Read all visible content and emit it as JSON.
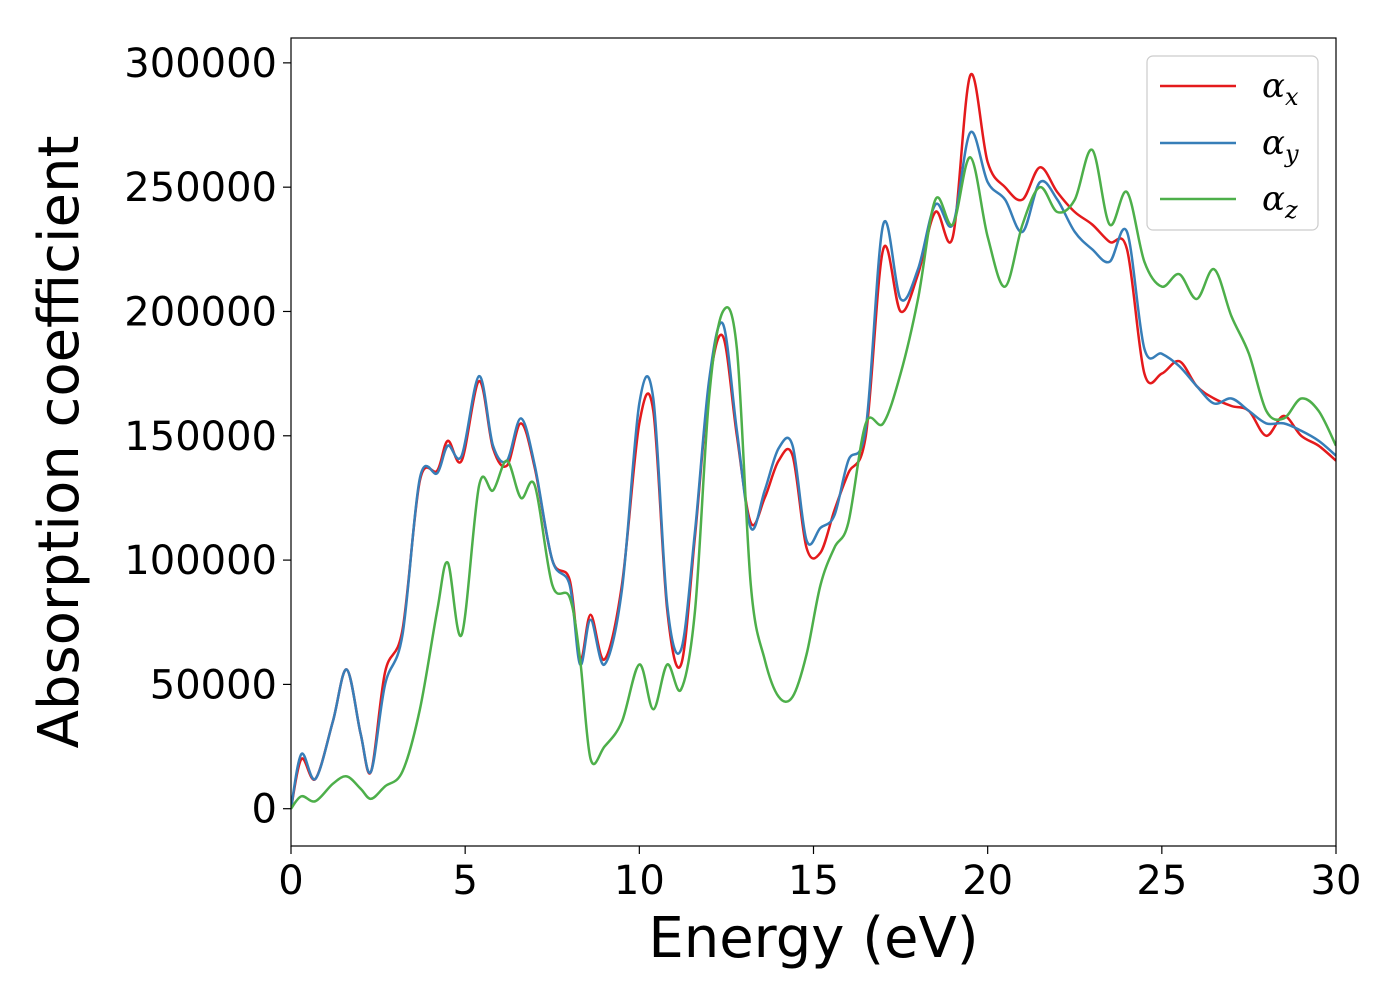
{
  "chart_data": {
    "type": "line",
    "xlabel": "Energy (eV)",
    "ylabel": "Absorption coefficient",
    "xlim": [
      0,
      30
    ],
    "ylim": [
      -15000,
      310000
    ],
    "xticks": [
      0,
      5,
      10,
      15,
      20,
      25,
      30
    ],
    "yticks": [
      0,
      50000,
      100000,
      150000,
      200000,
      250000,
      300000
    ],
    "grid": false,
    "legend_position": "top-right",
    "x": [
      0,
      0.3,
      0.7,
      1.2,
      1.6,
      2.0,
      2.3,
      2.7,
      3.2,
      3.7,
      4.2,
      4.5,
      4.9,
      5.4,
      5.8,
      6.2,
      6.6,
      7.0,
      7.5,
      8.0,
      8.3,
      8.6,
      9.0,
      9.5,
      10.0,
      10.4,
      10.8,
      11.2,
      11.6,
      12.0,
      12.4,
      12.8,
      13.2,
      13.6,
      14.0,
      14.4,
      14.8,
      15.2,
      15.6,
      16.0,
      16.5,
      17.0,
      17.5,
      18.0,
      18.5,
      19.0,
      19.5,
      20.0,
      20.5,
      21.0,
      21.5,
      22.0,
      22.5,
      23.0,
      23.5,
      24.0,
      24.5,
      25.0,
      25.5,
      26.0,
      26.5,
      27.0,
      27.5,
      28.0,
      28.5,
      29.0,
      29.5,
      30.0
    ],
    "series": [
      {
        "name": "x",
        "color": "#e41a1c",
        "values": [
          0,
          20000,
          12000,
          35000,
          56000,
          30000,
          15000,
          55000,
          72000,
          132000,
          136000,
          148000,
          140000,
          172000,
          145000,
          138000,
          155000,
          137000,
          100000,
          92000,
          60000,
          78000,
          60000,
          90000,
          155000,
          160000,
          80000,
          58000,
          110000,
          170000,
          190000,
          150000,
          115000,
          125000,
          140000,
          142000,
          105000,
          103000,
          120000,
          135000,
          150000,
          225000,
          200000,
          215000,
          240000,
          230000,
          295000,
          260000,
          250000,
          245000,
          258000,
          248000,
          240000,
          235000,
          228000,
          225000,
          175000,
          175000,
          180000,
          170000,
          165000,
          162000,
          160000,
          150000,
          158000,
          150000,
          146000,
          140000
        ]
      },
      {
        "name": "y",
        "color": "#377eb8",
        "values": [
          0,
          22000,
          12000,
          35000,
          56000,
          30000,
          15000,
          50000,
          70000,
          133000,
          135000,
          146000,
          142000,
          174000,
          146000,
          140000,
          157000,
          138000,
          100000,
          90000,
          58000,
          76000,
          58000,
          88000,
          163000,
          165000,
          82000,
          64000,
          112000,
          172000,
          195000,
          152000,
          113000,
          128000,
          145000,
          146000,
          108000,
          113000,
          118000,
          140000,
          153000,
          235000,
          205000,
          217000,
          243000,
          235000,
          272000,
          252000,
          245000,
          232000,
          252000,
          245000,
          232000,
          225000,
          220000,
          232000,
          185000,
          183000,
          178000,
          170000,
          163000,
          165000,
          160000,
          155000,
          155000,
          152000,
          148000,
          142000
        ]
      },
      {
        "name": "z",
        "color": "#4daf4a",
        "values": [
          0,
          5000,
          3000,
          10000,
          13000,
          8000,
          4000,
          9000,
          15000,
          40000,
          80000,
          99000,
          70000,
          130000,
          128000,
          140000,
          125000,
          130000,
          90000,
          85000,
          60000,
          20000,
          25000,
          35000,
          58000,
          40000,
          58000,
          48000,
          80000,
          165000,
          200000,
          185000,
          90000,
          60000,
          45000,
          45000,
          62000,
          90000,
          105000,
          115000,
          155000,
          155000,
          175000,
          205000,
          245000,
          235000,
          262000,
          230000,
          210000,
          235000,
          250000,
          240000,
          245000,
          265000,
          235000,
          248000,
          220000,
          210000,
          215000,
          205000,
          217000,
          198000,
          183000,
          160000,
          157000,
          165000,
          160000,
          146000
        ]
      }
    ]
  }
}
